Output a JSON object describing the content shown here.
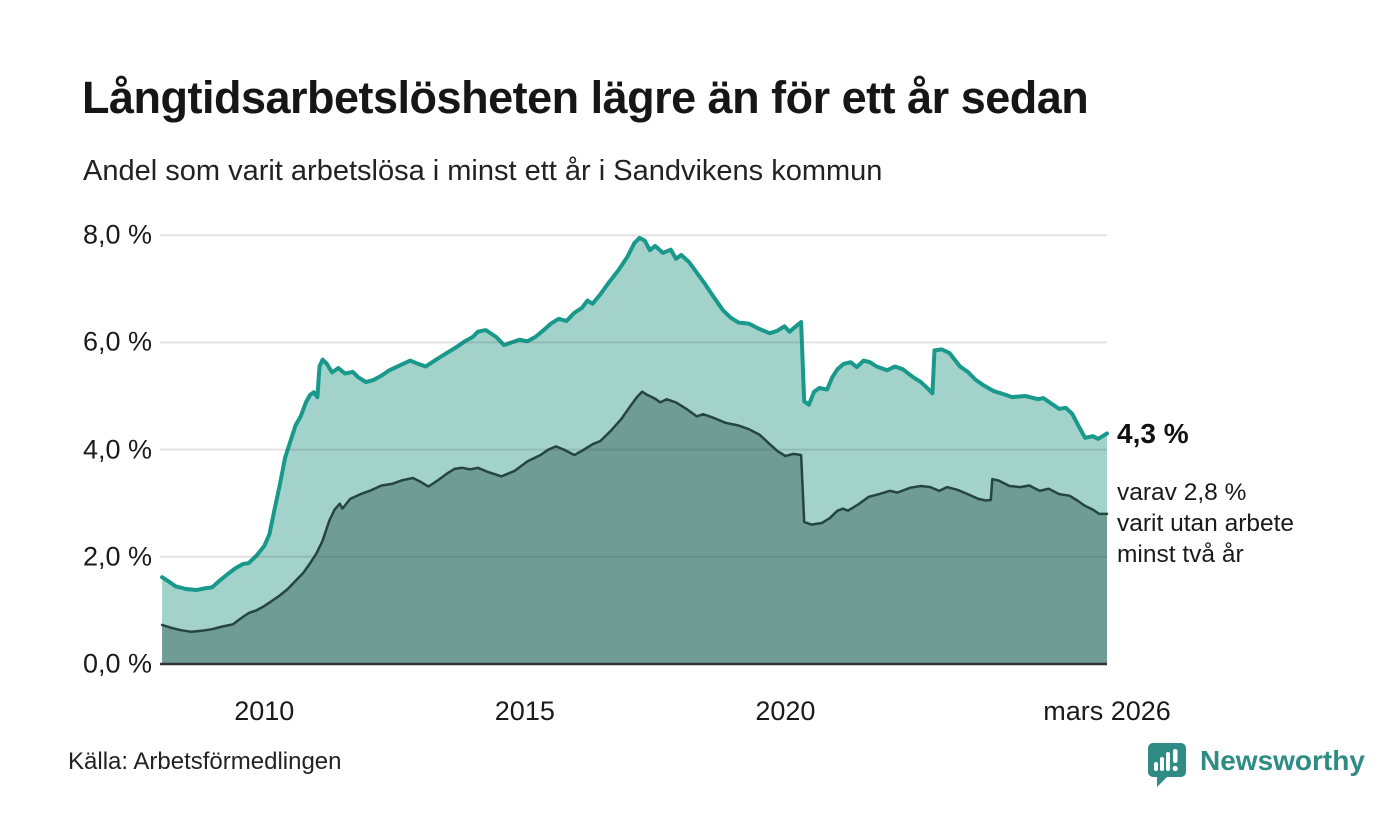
{
  "title": "Långtidsarbetslösheten lägre än för ett år sedan",
  "subtitle": "Andel som varit arbetslösa i minst ett år i Sandvikens kommun",
  "source": "Källa: Arbetsförmedlingen",
  "branding": {
    "name": "Newsworthy",
    "color": "#2e8c85"
  },
  "annotations": {
    "total_value_label": "4,3 %",
    "subset_line1": "varav 2,8 %",
    "subset_line2": "varit utan arbete",
    "subset_line3": "minst två år"
  },
  "colors": {
    "series_total_line": "#18998b",
    "series_total_fill": "#a3d2cb",
    "series_two_years_line": "#27453f",
    "series_two_years_fill": "#6f9d96",
    "gridline": "rgba(60,60,60,0.15)",
    "baseline": "#333333",
    "text": "#1a1a1a"
  },
  "chart_data": {
    "type": "area",
    "title": "Långtidsarbetslösheten lägre än för ett år sedan",
    "subtitle": "Andel som varit arbetslösa i minst ett år i Sandvikens kommun",
    "unit": "%",
    "x_range": [
      2008.0,
      2026.17
    ],
    "ylim": [
      0,
      8
    ],
    "grid": "horizontal",
    "y_ticks": [
      {
        "label": "8,0 %",
        "value": 8
      },
      {
        "label": "6,0 %",
        "value": 6
      },
      {
        "label": "4,0 %",
        "value": 4
      },
      {
        "label": "2,0 %",
        "value": 2
      },
      {
        "label": "0,0 %",
        "value": 0
      }
    ],
    "x_ticks": [
      {
        "label": "2010",
        "year": 2010
      },
      {
        "label": "2015",
        "year": 2015
      },
      {
        "label": "2020",
        "year": 2020
      },
      {
        "label": "mars 2026",
        "year": 2026.17
      }
    ],
    "series": [
      {
        "name": "Arbetslösa minst ett år",
        "end_value": 4.3,
        "line_color": "#18998b",
        "fill_color": "#a3d2cb",
        "line_width": 4,
        "points": [
          [
            2008.04,
            1.62
          ],
          [
            2008.15,
            1.55
          ],
          [
            2008.3,
            1.45
          ],
          [
            2008.5,
            1.4
          ],
          [
            2008.7,
            1.38
          ],
          [
            2008.85,
            1.41
          ],
          [
            2009.0,
            1.43
          ],
          [
            2009.15,
            1.56
          ],
          [
            2009.3,
            1.68
          ],
          [
            2009.45,
            1.79
          ],
          [
            2009.6,
            1.87
          ],
          [
            2009.7,
            1.88
          ],
          [
            2009.85,
            2.02
          ],
          [
            2010.0,
            2.2
          ],
          [
            2010.1,
            2.42
          ],
          [
            2010.2,
            2.9
          ],
          [
            2010.3,
            3.35
          ],
          [
            2010.4,
            3.85
          ],
          [
            2010.5,
            4.15
          ],
          [
            2010.6,
            4.45
          ],
          [
            2010.7,
            4.62
          ],
          [
            2010.8,
            4.88
          ],
          [
            2010.88,
            5.02
          ],
          [
            2010.95,
            5.07
          ],
          [
            2011.02,
            4.98
          ],
          [
            2011.06,
            5.55
          ],
          [
            2011.12,
            5.68
          ],
          [
            2011.2,
            5.6
          ],
          [
            2011.3,
            5.44
          ],
          [
            2011.42,
            5.52
          ],
          [
            2011.55,
            5.42
          ],
          [
            2011.7,
            5.45
          ],
          [
            2011.8,
            5.35
          ],
          [
            2011.95,
            5.26
          ],
          [
            2012.1,
            5.3
          ],
          [
            2012.25,
            5.38
          ],
          [
            2012.4,
            5.48
          ],
          [
            2012.6,
            5.57
          ],
          [
            2012.8,
            5.66
          ],
          [
            2012.95,
            5.6
          ],
          [
            2013.1,
            5.55
          ],
          [
            2013.3,
            5.68
          ],
          [
            2013.5,
            5.8
          ],
          [
            2013.7,
            5.92
          ],
          [
            2013.85,
            6.02
          ],
          [
            2014.0,
            6.1
          ],
          [
            2014.1,
            6.2
          ],
          [
            2014.25,
            6.23
          ],
          [
            2014.45,
            6.1
          ],
          [
            2014.6,
            5.95
          ],
          [
            2014.75,
            6.0
          ],
          [
            2014.9,
            6.05
          ],
          [
            2015.05,
            6.02
          ],
          [
            2015.2,
            6.1
          ],
          [
            2015.35,
            6.22
          ],
          [
            2015.5,
            6.35
          ],
          [
            2015.65,
            6.44
          ],
          [
            2015.8,
            6.4
          ],
          [
            2015.95,
            6.55
          ],
          [
            2016.1,
            6.65
          ],
          [
            2016.2,
            6.78
          ],
          [
            2016.3,
            6.72
          ],
          [
            2016.45,
            6.9
          ],
          [
            2016.6,
            7.1
          ],
          [
            2016.8,
            7.35
          ],
          [
            2016.97,
            7.6
          ],
          [
            2017.1,
            7.85
          ],
          [
            2017.2,
            7.95
          ],
          [
            2017.3,
            7.9
          ],
          [
            2017.4,
            7.72
          ],
          [
            2017.5,
            7.8
          ],
          [
            2017.65,
            7.67
          ],
          [
            2017.8,
            7.73
          ],
          [
            2017.9,
            7.56
          ],
          [
            2018.0,
            7.63
          ],
          [
            2018.15,
            7.5
          ],
          [
            2018.3,
            7.3
          ],
          [
            2018.45,
            7.1
          ],
          [
            2018.6,
            6.88
          ],
          [
            2018.8,
            6.6
          ],
          [
            2018.95,
            6.46
          ],
          [
            2019.1,
            6.37
          ],
          [
            2019.3,
            6.35
          ],
          [
            2019.5,
            6.25
          ],
          [
            2019.7,
            6.17
          ],
          [
            2019.85,
            6.22
          ],
          [
            2019.98,
            6.3
          ],
          [
            2020.08,
            6.2
          ],
          [
            2020.2,
            6.3
          ],
          [
            2020.3,
            6.38
          ],
          [
            2020.36,
            4.9
          ],
          [
            2020.45,
            4.84
          ],
          [
            2020.55,
            5.08
          ],
          [
            2020.65,
            5.15
          ],
          [
            2020.8,
            5.12
          ],
          [
            2020.9,
            5.35
          ],
          [
            2021.0,
            5.5
          ],
          [
            2021.12,
            5.6
          ],
          [
            2021.25,
            5.63
          ],
          [
            2021.37,
            5.54
          ],
          [
            2021.5,
            5.66
          ],
          [
            2021.62,
            5.63
          ],
          [
            2021.75,
            5.55
          ],
          [
            2021.95,
            5.48
          ],
          [
            2022.1,
            5.55
          ],
          [
            2022.25,
            5.5
          ],
          [
            2022.45,
            5.35
          ],
          [
            2022.6,
            5.26
          ],
          [
            2022.75,
            5.12
          ],
          [
            2022.82,
            5.05
          ],
          [
            2022.86,
            5.85
          ],
          [
            2023.0,
            5.87
          ],
          [
            2023.15,
            5.8
          ],
          [
            2023.35,
            5.55
          ],
          [
            2023.5,
            5.45
          ],
          [
            2023.65,
            5.3
          ],
          [
            2023.8,
            5.2
          ],
          [
            2024.0,
            5.09
          ],
          [
            2024.2,
            5.03
          ],
          [
            2024.35,
            4.98
          ],
          [
            2024.6,
            5.0
          ],
          [
            2024.85,
            4.94
          ],
          [
            2024.95,
            4.96
          ],
          [
            2025.1,
            4.86
          ],
          [
            2025.25,
            4.76
          ],
          [
            2025.38,
            4.78
          ],
          [
            2025.5,
            4.67
          ],
          [
            2025.63,
            4.43
          ],
          [
            2025.75,
            4.22
          ],
          [
            2025.9,
            4.25
          ],
          [
            2026.0,
            4.2
          ],
          [
            2026.17,
            4.3
          ]
        ]
      },
      {
        "name": "Varit utan arbete minst två år",
        "end_value": 2.8,
        "line_color": "#27453f",
        "fill_color": "#6f9d96",
        "line_width": 2.5,
        "points": [
          [
            2008.04,
            0.73
          ],
          [
            2008.2,
            0.68
          ],
          [
            2008.4,
            0.63
          ],
          [
            2008.6,
            0.6
          ],
          [
            2008.8,
            0.62
          ],
          [
            2009.0,
            0.65
          ],
          [
            2009.2,
            0.7
          ],
          [
            2009.4,
            0.74
          ],
          [
            2009.55,
            0.85
          ],
          [
            2009.7,
            0.95
          ],
          [
            2009.85,
            1.0
          ],
          [
            2010.0,
            1.08
          ],
          [
            2010.15,
            1.18
          ],
          [
            2010.3,
            1.28
          ],
          [
            2010.45,
            1.4
          ],
          [
            2010.6,
            1.55
          ],
          [
            2010.75,
            1.7
          ],
          [
            2010.88,
            1.88
          ],
          [
            2011.0,
            2.06
          ],
          [
            2011.12,
            2.3
          ],
          [
            2011.25,
            2.68
          ],
          [
            2011.35,
            2.88
          ],
          [
            2011.45,
            2.99
          ],
          [
            2011.5,
            2.9
          ],
          [
            2011.65,
            3.08
          ],
          [
            2011.85,
            3.17
          ],
          [
            2012.05,
            3.24
          ],
          [
            2012.25,
            3.33
          ],
          [
            2012.45,
            3.36
          ],
          [
            2012.65,
            3.43
          ],
          [
            2012.85,
            3.47
          ],
          [
            2013.0,
            3.4
          ],
          [
            2013.15,
            3.31
          ],
          [
            2013.35,
            3.44
          ],
          [
            2013.5,
            3.55
          ],
          [
            2013.65,
            3.64
          ],
          [
            2013.8,
            3.66
          ],
          [
            2013.95,
            3.63
          ],
          [
            2014.1,
            3.66
          ],
          [
            2014.3,
            3.58
          ],
          [
            2014.55,
            3.5
          ],
          [
            2014.8,
            3.6
          ],
          [
            2015.05,
            3.78
          ],
          [
            2015.3,
            3.9
          ],
          [
            2015.45,
            4.0
          ],
          [
            2015.6,
            4.06
          ],
          [
            2015.75,
            4.0
          ],
          [
            2015.95,
            3.9
          ],
          [
            2016.1,
            3.98
          ],
          [
            2016.3,
            4.1
          ],
          [
            2016.45,
            4.16
          ],
          [
            2016.65,
            4.35
          ],
          [
            2016.85,
            4.57
          ],
          [
            2017.0,
            4.78
          ],
          [
            2017.15,
            4.98
          ],
          [
            2017.25,
            5.08
          ],
          [
            2017.35,
            5.02
          ],
          [
            2017.5,
            4.95
          ],
          [
            2017.6,
            4.88
          ],
          [
            2017.72,
            4.94
          ],
          [
            2017.9,
            4.88
          ],
          [
            2018.1,
            4.76
          ],
          [
            2018.3,
            4.62
          ],
          [
            2018.42,
            4.66
          ],
          [
            2018.6,
            4.6
          ],
          [
            2018.85,
            4.5
          ],
          [
            2019.1,
            4.45
          ],
          [
            2019.3,
            4.38
          ],
          [
            2019.5,
            4.28
          ],
          [
            2019.7,
            4.1
          ],
          [
            2019.85,
            3.97
          ],
          [
            2020.0,
            3.88
          ],
          [
            2020.15,
            3.92
          ],
          [
            2020.3,
            3.9
          ],
          [
            2020.36,
            2.65
          ],
          [
            2020.5,
            2.6
          ],
          [
            2020.7,
            2.63
          ],
          [
            2020.85,
            2.72
          ],
          [
            2021.0,
            2.86
          ],
          [
            2021.1,
            2.9
          ],
          [
            2021.2,
            2.86
          ],
          [
            2021.4,
            2.98
          ],
          [
            2021.6,
            3.12
          ],
          [
            2021.8,
            3.17
          ],
          [
            2022.0,
            3.23
          ],
          [
            2022.15,
            3.2
          ],
          [
            2022.4,
            3.29
          ],
          [
            2022.6,
            3.32
          ],
          [
            2022.78,
            3.3
          ],
          [
            2022.95,
            3.23
          ],
          [
            2023.1,
            3.3
          ],
          [
            2023.3,
            3.25
          ],
          [
            2023.5,
            3.17
          ],
          [
            2023.7,
            3.08
          ],
          [
            2023.85,
            3.05
          ],
          [
            2023.94,
            3.06
          ],
          [
            2023.97,
            3.45
          ],
          [
            2024.1,
            3.42
          ],
          [
            2024.3,
            3.32
          ],
          [
            2024.5,
            3.3
          ],
          [
            2024.68,
            3.33
          ],
          [
            2024.88,
            3.23
          ],
          [
            2025.05,
            3.27
          ],
          [
            2025.25,
            3.17
          ],
          [
            2025.45,
            3.14
          ],
          [
            2025.6,
            3.05
          ],
          [
            2025.75,
            2.95
          ],
          [
            2025.9,
            2.88
          ],
          [
            2026.02,
            2.8
          ],
          [
            2026.17,
            2.8
          ]
        ]
      }
    ]
  }
}
